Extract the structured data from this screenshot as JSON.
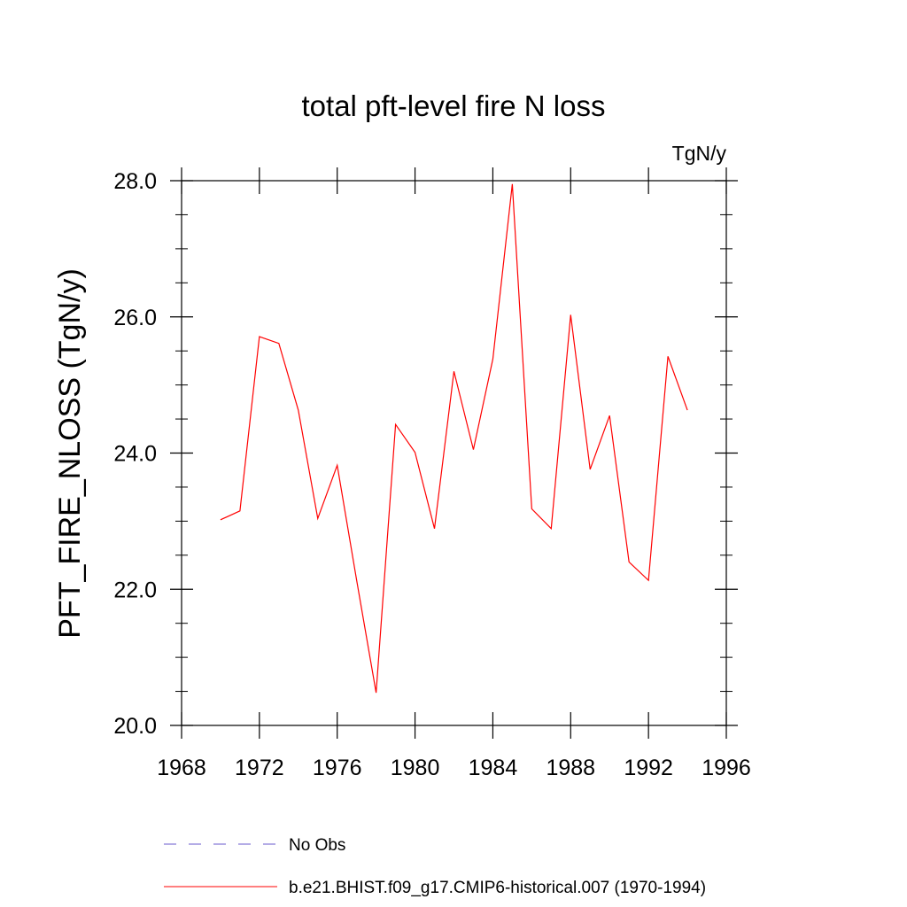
{
  "chart_data": {
    "type": "line",
    "title": "total pft-level fire N loss",
    "units_label": "TgN/y",
    "ylabel": "PFT_FIRE_NLOSS  (TgN/y)",
    "xlabel": "",
    "xlim": [
      1968,
      1996
    ],
    "ylim": [
      20.0,
      28.0
    ],
    "x_ticks": [
      1968,
      1972,
      1976,
      1980,
      1984,
      1988,
      1992,
      1996
    ],
    "x_tick_labels": [
      "1968",
      "1972",
      "1976",
      "1980",
      "1984",
      "1988",
      "1992",
      "1996"
    ],
    "y_ticks": [
      20.0,
      22.0,
      24.0,
      26.0,
      28.0
    ],
    "y_tick_labels": [
      "20.0",
      "22.0",
      "24.0",
      "26.0",
      "28.0"
    ],
    "series": [
      {
        "name": "b.e21.BHIST.f09_g17.CMIP6-historical.007 (1970-1994)",
        "color": "#ff0000",
        "style": "solid",
        "x": [
          1970,
          1971,
          1972,
          1973,
          1974,
          1975,
          1976,
          1977,
          1978,
          1979,
          1980,
          1981,
          1982,
          1983,
          1984,
          1985,
          1986,
          1987,
          1988,
          1989,
          1990,
          1991,
          1992,
          1993,
          1994
        ],
        "values": [
          23.02,
          23.15,
          25.71,
          25.61,
          24.63,
          23.04,
          23.82,
          22.13,
          20.48,
          24.42,
          24.01,
          22.89,
          25.2,
          24.05,
          25.38,
          27.95,
          23.18,
          22.89,
          26.03,
          23.76,
          24.55,
          22.4,
          22.13,
          25.42,
          24.63
        ]
      }
    ],
    "legend": [
      {
        "label": "No Obs",
        "color": "#6a5acd",
        "style": "dashed"
      },
      {
        "label": "b.e21.BHIST.f09_g17.CMIP6-historical.007 (1970-1994)",
        "color": "#ff0000",
        "style": "solid"
      }
    ]
  }
}
